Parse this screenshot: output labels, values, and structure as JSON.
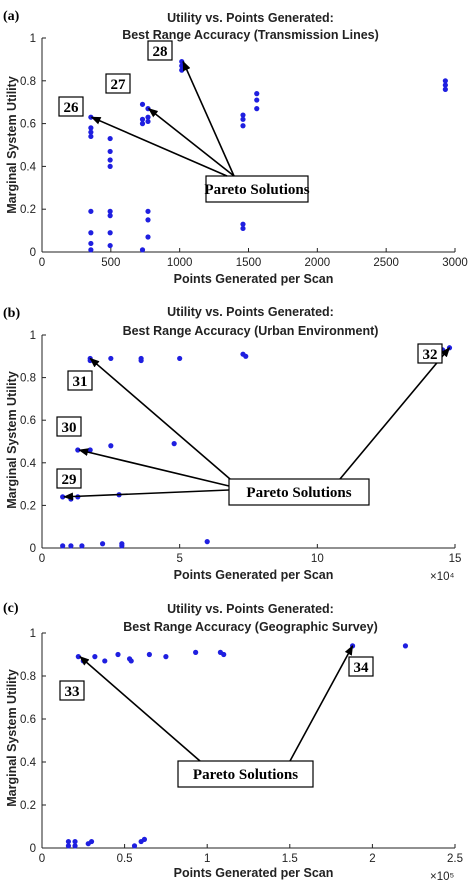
{
  "chart_data": [
    {
      "type": "scatter",
      "panel_label": "(a)",
      "title": [
        "Utility vs. Points Generated:",
        "Best Range Accuracy (Transmission Lines)"
      ],
      "xlabel": "Points Generated per Scan",
      "ylabel": "Marginal System Utility",
      "xlim": [
        0,
        3000
      ],
      "ylim": [
        0,
        1
      ],
      "xticks": [
        0,
        500,
        1000,
        1500,
        2000,
        2500,
        3000
      ],
      "yticks": [
        0,
        0.2,
        0.4,
        0.6,
        0.8,
        1
      ],
      "x_exponent": "",
      "grid": false,
      "point_color": "#1f1fe0",
      "points": [
        [
          355,
          0.63
        ],
        [
          355,
          0.58
        ],
        [
          355,
          0.56
        ],
        [
          355,
          0.54
        ],
        [
          355,
          0.19
        ],
        [
          355,
          0.09
        ],
        [
          355,
          0.04
        ],
        [
          355,
          0.01
        ],
        [
          495,
          0.53
        ],
        [
          495,
          0.47
        ],
        [
          495,
          0.43
        ],
        [
          495,
          0.4
        ],
        [
          495,
          0.19
        ],
        [
          495,
          0.17
        ],
        [
          495,
          0.09
        ],
        [
          495,
          0.03
        ],
        [
          730,
          0.69
        ],
        [
          730,
          0.62
        ],
        [
          730,
          0.6
        ],
        [
          730,
          0.01
        ],
        [
          770,
          0.67
        ],
        [
          770,
          0.63
        ],
        [
          770,
          0.61
        ],
        [
          770,
          0.19
        ],
        [
          770,
          0.15
        ],
        [
          770,
          0.07
        ],
        [
          1015,
          0.89
        ],
        [
          1015,
          0.87
        ],
        [
          1015,
          0.85
        ],
        [
          1460,
          0.64
        ],
        [
          1460,
          0.62
        ],
        [
          1460,
          0.59
        ],
        [
          1460,
          0.13
        ],
        [
          1460,
          0.11
        ],
        [
          1560,
          0.74
        ],
        [
          1560,
          0.71
        ],
        [
          1560,
          0.67
        ],
        [
          2930,
          0.8
        ],
        [
          2930,
          0.78
        ],
        [
          2930,
          0.76
        ]
      ],
      "annotations": [
        {
          "label": "26",
          "arrow_to": [
            360,
            0.63
          ]
        },
        {
          "label": "27",
          "arrow_to": [
            775,
            0.67
          ]
        },
        {
          "label": "28",
          "arrow_to": [
            1025,
            0.89
          ]
        }
      ],
      "callout": "Pareto Solutions"
    },
    {
      "type": "scatter",
      "panel_label": "(b)",
      "title": [
        "Utility vs. Points Generated:",
        "Best Range Accuracy (Urban Environment)"
      ],
      "xlabel": "Points Generated per Scan",
      "ylabel": "Marginal System Utility",
      "xlim": [
        0,
        15
      ],
      "ylim": [
        0,
        1
      ],
      "xticks": [
        0,
        5,
        10,
        15
      ],
      "yticks": [
        0,
        0.2,
        0.4,
        0.6,
        0.8,
        1
      ],
      "x_exponent": "×10⁴",
      "grid": false,
      "point_color": "#1f1fe0",
      "points": [
        [
          0.75,
          0.24
        ],
        [
          0.75,
          0.01
        ],
        [
          1.05,
          0.23
        ],
        [
          1.05,
          0.01
        ],
        [
          1.3,
          0.46
        ],
        [
          1.3,
          0.24
        ],
        [
          1.45,
          0.01
        ],
        [
          1.75,
          0.89
        ],
        [
          1.75,
          0.88
        ],
        [
          1.75,
          0.46
        ],
        [
          2.2,
          0.02
        ],
        [
          2.5,
          0.89
        ],
        [
          2.5,
          0.48
        ],
        [
          2.8,
          0.25
        ],
        [
          2.9,
          0.02
        ],
        [
          2.9,
          0.01
        ],
        [
          3.6,
          0.89
        ],
        [
          3.6,
          0.88
        ],
        [
          4.8,
          0.49
        ],
        [
          5.0,
          0.89
        ],
        [
          6.0,
          0.03
        ],
        [
          7.3,
          0.91
        ],
        [
          7.4,
          0.9
        ],
        [
          14.55,
          0.93
        ],
        [
          14.8,
          0.94
        ]
      ],
      "annotations": [
        {
          "label": "29",
          "arrow_to": [
            0.8,
            0.24
          ]
        },
        {
          "label": "30",
          "arrow_to": [
            1.35,
            0.46
          ]
        },
        {
          "label": "31",
          "arrow_to": [
            1.75,
            0.89
          ]
        },
        {
          "label": "32",
          "arrow_to": [
            14.8,
            0.94
          ]
        }
      ],
      "callout": "Pareto Solutions"
    },
    {
      "type": "scatter",
      "panel_label": "(c)",
      "title": [
        "Utility vs. Points Generated:",
        "Best Range Accuracy (Geographic Survey)"
      ],
      "xlabel": "Points Generated per Scan",
      "ylabel": "Marginal System Utility",
      "xlim": [
        0,
        2.5
      ],
      "ylim": [
        0,
        1
      ],
      "xticks": [
        0,
        0.5,
        1,
        1.5,
        2,
        2.5
      ],
      "yticks": [
        0,
        0.2,
        0.4,
        0.6,
        0.8,
        1
      ],
      "x_exponent": "×10⁵",
      "grid": false,
      "point_color": "#1f1fe0",
      "points": [
        [
          0.16,
          0.01
        ],
        [
          0.16,
          0.03
        ],
        [
          0.2,
          0.01
        ],
        [
          0.2,
          0.03
        ],
        [
          0.22,
          0.89
        ],
        [
          0.25,
          0.87
        ],
        [
          0.28,
          0.02
        ],
        [
          0.3,
          0.03
        ],
        [
          0.32,
          0.89
        ],
        [
          0.38,
          0.87
        ],
        [
          0.46,
          0.9
        ],
        [
          0.53,
          0.88
        ],
        [
          0.54,
          0.87
        ],
        [
          0.56,
          0.01
        ],
        [
          0.6,
          0.03
        ],
        [
          0.62,
          0.04
        ],
        [
          0.65,
          0.9
        ],
        [
          0.75,
          0.89
        ],
        [
          0.93,
          0.91
        ],
        [
          1.08,
          0.91
        ],
        [
          1.1,
          0.9
        ],
        [
          1.88,
          0.94
        ],
        [
          2.2,
          0.94
        ]
      ],
      "annotations": [
        {
          "label": "33",
          "arrow_to": [
            0.23,
            0.89
          ]
        },
        {
          "label": "34",
          "arrow_to": [
            1.88,
            0.94
          ]
        }
      ],
      "callout": "Pareto Solutions"
    }
  ]
}
